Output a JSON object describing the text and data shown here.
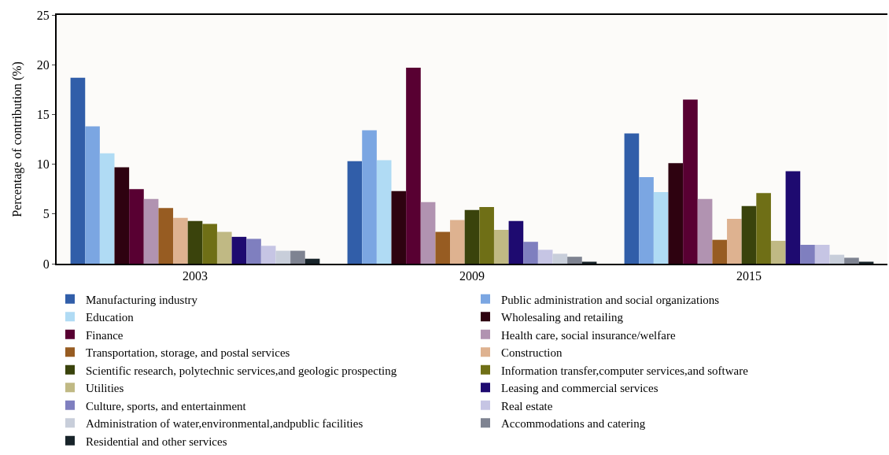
{
  "chart_data": {
    "type": "bar",
    "ylabel": "Percentage of contribution (%)",
    "categories": [
      "2003",
      "2009",
      "2015"
    ],
    "series": [
      {
        "name": "Manufacturing industry",
        "color": "#315ea9",
        "values": [
          18.7,
          10.3,
          13.1
        ]
      },
      {
        "name": "Public administration and social organizations",
        "color": "#7ba6e2",
        "values": [
          13.8,
          13.4,
          8.7
        ]
      },
      {
        "name": "Education",
        "color": "#b0dbf4",
        "values": [
          11.1,
          10.4,
          7.2
        ]
      },
      {
        "name": "Wholesaling and retailing",
        "color": "#2e0210",
        "values": [
          9.7,
          7.3,
          10.1
        ]
      },
      {
        "name": "Finance",
        "color": "#580032",
        "values": [
          7.5,
          19.7,
          16.5
        ]
      },
      {
        "name": "Health care, social insurance/welfare",
        "color": "#b193b1",
        "values": [
          6.5,
          6.2,
          6.5
        ]
      },
      {
        "name": "Transportation, storage, and postal services",
        "color": "#975c22",
        "values": [
          5.6,
          3.2,
          2.4
        ]
      },
      {
        "name": "Construction",
        "color": "#deb290",
        "values": [
          4.6,
          4.4,
          4.5
        ]
      },
      {
        "name": "Scientific research, polytechnic services,and geologic prospecting",
        "color": "#3a430c",
        "values": [
          4.3,
          5.4,
          5.8
        ]
      },
      {
        "name": "Information transfer,computer services,and software",
        "color": "#6f6f16",
        "values": [
          4.0,
          5.7,
          7.1
        ]
      },
      {
        "name": "Utilities",
        "color": "#c0b984",
        "values": [
          3.2,
          3.4,
          2.3
        ]
      },
      {
        "name": "Leasing and commercial services",
        "color": "#1e0a70",
        "values": [
          2.7,
          4.3,
          9.3
        ]
      },
      {
        "name": "Culture, sports, and entertainment",
        "color": "#7f7fbf",
        "values": [
          2.5,
          2.2,
          1.9
        ]
      },
      {
        "name": "Real estate",
        "color": "#c6c5e4",
        "values": [
          1.8,
          1.4,
          1.9
        ]
      },
      {
        "name": "Administration of water,environmental,andpublic facilities",
        "color": "#c8ceda",
        "values": [
          1.3,
          1.0,
          0.9
        ]
      },
      {
        "name": "Accommodations and catering",
        "color": "#7e8391",
        "values": [
          1.3,
          0.7,
          0.6
        ]
      },
      {
        "name": "Residential and other services",
        "color": "#18242a",
        "values": [
          0.5,
          0.2,
          0.2
        ]
      }
    ],
    "ylim": [
      0,
      25
    ],
    "yticks": [
      0,
      5,
      10,
      15,
      20,
      25
    ],
    "grid": false,
    "legend": "bottom"
  }
}
